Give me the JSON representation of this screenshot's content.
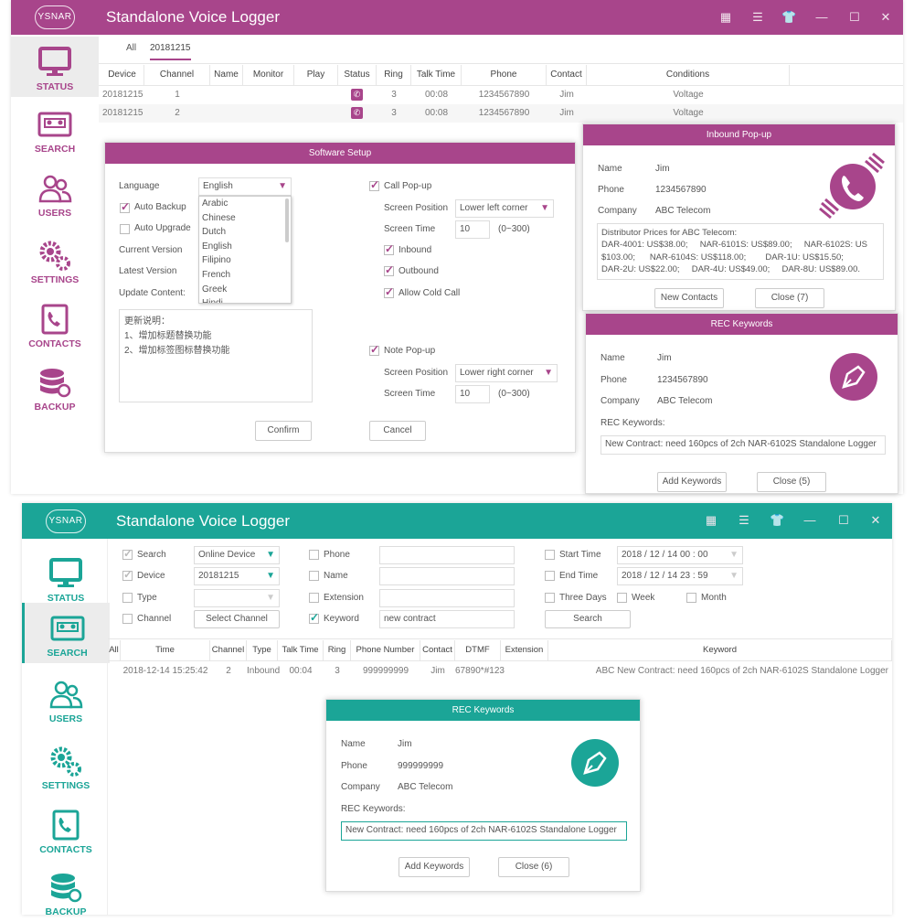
{
  "colors": {
    "purple": "#a8458b",
    "teal": "#1ba597"
  },
  "top": {
    "logo": "YSNAR",
    "title": "Standalone Voice Logger",
    "controls": [
      "grid-icon",
      "list-icon",
      "skin-icon",
      "minimize-icon",
      "maximize-icon",
      "close-icon"
    ],
    "sidebar": [
      {
        "label": "STATUS",
        "icon": "monitor-icon"
      },
      {
        "label": "SEARCH",
        "icon": "cassette-icon"
      },
      {
        "label": "USERS",
        "icon": "users-icon"
      },
      {
        "label": "SETTINGS",
        "icon": "gears-icon"
      },
      {
        "label": "CONTACTS",
        "icon": "phonebook-icon"
      },
      {
        "label": "BACKUP",
        "icon": "database-icon"
      }
    ],
    "tabs": [
      "All",
      "20181215"
    ],
    "columns": [
      "Device",
      "Channel",
      "Name",
      "Monitor",
      "Play",
      "Status",
      "Ring",
      "Talk Time",
      "Phone",
      "Contact",
      "Conditions"
    ],
    "rows": [
      [
        "20181215",
        "1",
        "",
        "",
        "",
        "phone-icon",
        "3",
        "00:08",
        "1234567890",
        "Jim",
        "Voltage"
      ],
      [
        "20181215",
        "2",
        "",
        "",
        "",
        "phone-icon",
        "3",
        "00:08",
        "1234567890",
        "Jim",
        "Voltage"
      ]
    ]
  },
  "setup": {
    "title": "Software Setup",
    "language_label": "Language",
    "language_value": "English",
    "language_options": [
      "Arabic",
      "Chinese",
      "Dutch",
      "English",
      "Filipino",
      "French",
      "Greek",
      "Hindi"
    ],
    "auto_backup": "Auto Backup",
    "auto_upgrade": "Auto Upgrade",
    "current_version": "Current Version",
    "latest_version": "Latest Version",
    "update_content": "Update Content:",
    "notes": [
      "更新说明：",
      "1、增加标题替换功能",
      "2、增加标签图标替换功能"
    ],
    "call_popup": "Call Pop-up",
    "screen_position": "Screen Position",
    "call_position": "Lower left corner",
    "screen_time": "Screen Time",
    "call_time": "10",
    "range": "(0~300)",
    "inbound": "Inbound",
    "outbound": "Outbound",
    "allow_cold_call": "Allow Cold Call",
    "note_popup": "Note Pop-up",
    "note_position": "Lower right corner",
    "note_time": "10",
    "confirm": "Confirm",
    "cancel": "Cancel"
  },
  "inbound": {
    "title": "Inbound Pop-up",
    "name_label": "Name",
    "name": "Jim",
    "phone_label": "Phone",
    "phone": "1234567890",
    "company_label": "Company",
    "company": "ABC Telecom",
    "notes": [
      "Distributor Prices for ABC Telecom:",
      "DAR-4001: US$38.00;     NAR-6101S: US$89.00;     NAR-6102S: US",
      "$103.00;      NAR-6104S: US$118.00;        DAR-1U: US$15.50;",
      "DAR-2U: US$22.00;     DAR-4U: US$49.00;     DAR-8U: US$89.00."
    ],
    "new_contacts": "New Contacts",
    "close": "Close (7)"
  },
  "rec_top": {
    "title": "REC Keywords",
    "name_label": "Name",
    "name": "Jim",
    "phone_label": "Phone",
    "phone": "1234567890",
    "company_label": "Company",
    "company": "ABC Telecom",
    "keywords_label": "REC Keywords:",
    "keywords": "New Contract: need 160pcs of 2ch NAR-6102S Standalone Logger",
    "add": "Add Keywords",
    "close": "Close (5)"
  },
  "bottom": {
    "logo": "YSNAR",
    "title": "Standalone Voice Logger",
    "search": {
      "search": "Search",
      "search_value": "Online Device",
      "device": "Device",
      "device_value": "20181215",
      "type": "Type",
      "channel": "Channel",
      "select_channel": "Select Channel",
      "phone": "Phone",
      "name": "Name",
      "extension": "Extension",
      "keyword": "Keyword",
      "keyword_value": "new contract",
      "start_time": "Start Time",
      "start_value": "2018 / 12 / 14   00 : 00",
      "end_time": "End Time",
      "end_value": "2018 / 12 / 14   23 : 59",
      "three_days": "Three Days",
      "week": "Week",
      "month": "Month",
      "search_button": "Search"
    },
    "columns": [
      "All",
      "Time",
      "Channel",
      "Type",
      "Talk Time",
      "Ring",
      "Phone Number",
      "Contact",
      "DTMF",
      "Extension",
      "Keyword"
    ],
    "rows": [
      [
        "",
        "2018-12-14 15:25:42",
        "2",
        "Inbound",
        "00:04",
        "3",
        "999999999",
        "Jim",
        "67890*#123",
        "",
        "ABC New Contract: need 160pcs of 2ch NAR-6102S Standalone Logger"
      ]
    ]
  },
  "rec_bottom": {
    "title": "REC Keywords",
    "name_label": "Name",
    "name": "Jim",
    "phone_label": "Phone",
    "phone": "999999999",
    "company_label": "Company",
    "company": "ABC Telecom",
    "keywords_label": "REC Keywords:",
    "keywords": "New Contract: need 160pcs of 2ch NAR-6102S Standalone Logger",
    "add": "Add Keywords",
    "close": "Close (6)"
  }
}
